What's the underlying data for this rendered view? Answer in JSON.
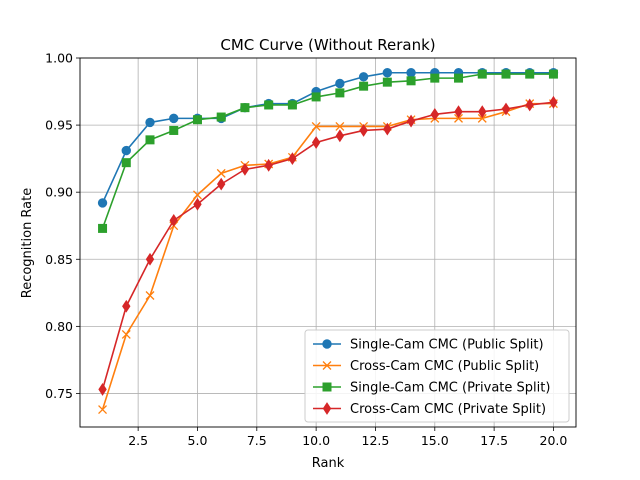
{
  "chart_data": {
    "type": "line",
    "title": "CMC Curve (Without Rerank)",
    "xlabel": "Rank",
    "ylabel": "Recognition Rate",
    "xlim": [
      0.05,
      20.95
    ],
    "ylim": [
      0.725,
      1.0
    ],
    "xticks": [
      2.5,
      5.0,
      7.5,
      10.0,
      12.5,
      15.0,
      17.5,
      20.0
    ],
    "xtick_labels": [
      "2.5",
      "5.0",
      "7.5",
      "10.0",
      "12.5",
      "15.0",
      "17.5",
      "20.0"
    ],
    "yticks": [
      0.75,
      0.8,
      0.85,
      0.9,
      0.95,
      1.0
    ],
    "ytick_labels": [
      "0.75",
      "0.80",
      "0.85",
      "0.90",
      "0.95",
      "1.00"
    ],
    "grid": true,
    "legend_position": "lower-right",
    "x": [
      1,
      2,
      3,
      4,
      5,
      6,
      7,
      8,
      9,
      10,
      11,
      12,
      13,
      14,
      15,
      16,
      17,
      18,
      19,
      20
    ],
    "series": [
      {
        "name": "Single-Cam CMC (Public Split)",
        "color": "#1f77b4",
        "marker": "circle",
        "values": [
          0.892,
          0.931,
          0.952,
          0.955,
          0.955,
          0.955,
          0.963,
          0.966,
          0.966,
          0.975,
          0.981,
          0.986,
          0.989,
          0.989,
          0.989,
          0.989,
          0.989,
          0.989,
          0.989,
          0.989
        ]
      },
      {
        "name": "Cross-Cam CMC (Public Split)",
        "color": "#ff7f0e",
        "marker": "x",
        "values": [
          0.738,
          0.794,
          0.823,
          0.875,
          0.898,
          0.914,
          0.92,
          0.921,
          0.926,
          0.949,
          0.949,
          0.949,
          0.949,
          0.954,
          0.955,
          0.955,
          0.955,
          0.96,
          0.966,
          0.966
        ]
      },
      {
        "name": "Single-Cam CMC (Private Split)",
        "color": "#2ca02c",
        "marker": "square",
        "values": [
          0.873,
          0.922,
          0.939,
          0.946,
          0.954,
          0.956,
          0.963,
          0.965,
          0.965,
          0.971,
          0.974,
          0.979,
          0.982,
          0.983,
          0.985,
          0.985,
          0.988,
          0.988,
          0.988,
          0.988
        ]
      },
      {
        "name": "Cross-Cam CMC (Private Split)",
        "color": "#d62728",
        "marker": "diamond",
        "values": [
          0.753,
          0.815,
          0.85,
          0.879,
          0.891,
          0.906,
          0.917,
          0.92,
          0.925,
          0.937,
          0.942,
          0.946,
          0.947,
          0.953,
          0.958,
          0.96,
          0.96,
          0.962,
          0.965,
          0.967
        ]
      }
    ]
  }
}
